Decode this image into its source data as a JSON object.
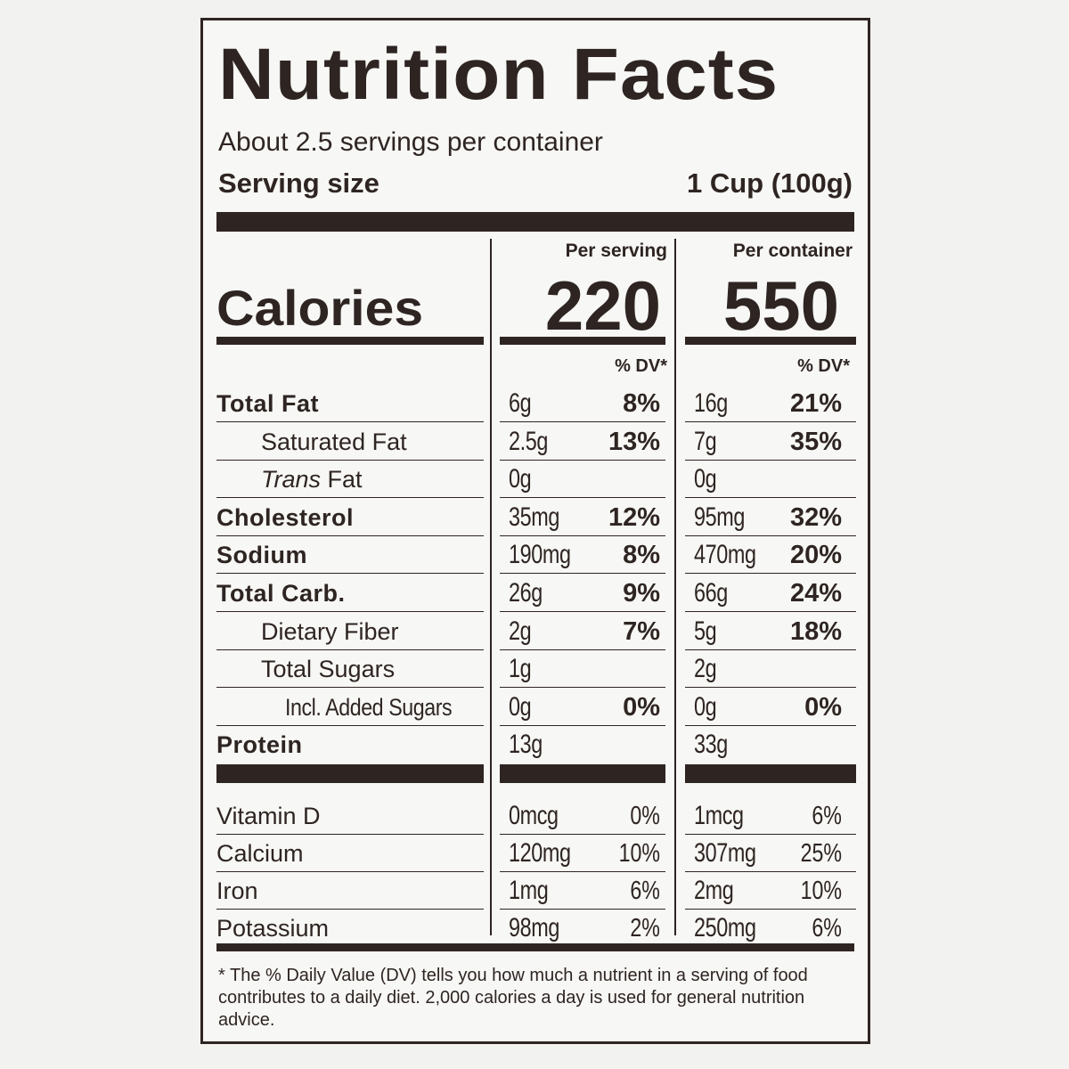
{
  "title": "Nutrition Facts",
  "servings_per_container": "About 2.5 servings per container",
  "serving_size_label": "Serving size",
  "serving_size_value": "1 Cup (100g)",
  "calories_label": "Calories",
  "columns": [
    {
      "header": "Per serving",
      "calories": "220",
      "dv_header": "% DV*"
    },
    {
      "header": "Per container",
      "calories": "550",
      "dv_header": "% DV*"
    }
  ],
  "nutrients": [
    {
      "name": "Total Fat",
      "style": "bold",
      "indent": 0,
      "serving": {
        "amount": "6g",
        "dv": "8%"
      },
      "container": {
        "amount": "16g",
        "dv": "21%"
      }
    },
    {
      "name": "Saturated Fat",
      "style": "normal",
      "indent": 1,
      "serving": {
        "amount": "2.5g",
        "dv": "13%"
      },
      "container": {
        "amount": "7g",
        "dv": "35%"
      }
    },
    {
      "name": "Trans",
      "name_suffix": " Fat",
      "style": "italic",
      "indent": 1,
      "serving": {
        "amount": "0g",
        "dv": ""
      },
      "container": {
        "amount": "0g",
        "dv": ""
      }
    },
    {
      "name": "Cholesterol",
      "style": "bold",
      "indent": 0,
      "serving": {
        "amount": "35mg",
        "dv": "12%"
      },
      "container": {
        "amount": "95mg",
        "dv": "32%"
      }
    },
    {
      "name": "Sodium",
      "style": "bold",
      "indent": 0,
      "serving": {
        "amount": "190mg",
        "dv": "8%"
      },
      "container": {
        "amount": "470mg",
        "dv": "20%"
      }
    },
    {
      "name": "Total Carb.",
      "style": "bold",
      "indent": 0,
      "serving": {
        "amount": "26g",
        "dv": "9%"
      },
      "container": {
        "amount": "66g",
        "dv": "24%"
      }
    },
    {
      "name": "Dietary Fiber",
      "style": "normal",
      "indent": 1,
      "serving": {
        "amount": "2g",
        "dv": "7%"
      },
      "container": {
        "amount": "5g",
        "dv": "18%"
      }
    },
    {
      "name": "Total Sugars",
      "style": "normal",
      "indent": 1,
      "serving": {
        "amount": "1g",
        "dv": ""
      },
      "container": {
        "amount": "2g",
        "dv": ""
      }
    },
    {
      "name": "Incl. Added Sugars",
      "style": "condensed",
      "indent": 2,
      "serving": {
        "amount": "0g",
        "dv": "0%"
      },
      "container": {
        "amount": "0g",
        "dv": "0%"
      }
    },
    {
      "name": "Protein",
      "style": "bold",
      "indent": 0,
      "serving": {
        "amount": "13g",
        "dv": ""
      },
      "container": {
        "amount": "33g",
        "dv": ""
      }
    }
  ],
  "vitamins": [
    {
      "name": "Vitamin D",
      "serving": {
        "amount": "0mcg",
        "dv": "0%"
      },
      "container": {
        "amount": "1mcg",
        "dv": "6%"
      }
    },
    {
      "name": "Calcium",
      "serving": {
        "amount": "120mg",
        "dv": "10%"
      },
      "container": {
        "amount": "307mg",
        "dv": "25%"
      }
    },
    {
      "name": "Iron",
      "serving": {
        "amount": "1mg",
        "dv": "6%"
      },
      "container": {
        "amount": "2mg",
        "dv": "10%"
      }
    },
    {
      "name": "Potassium",
      "serving": {
        "amount": "98mg",
        "dv": "2%"
      },
      "container": {
        "amount": "250mg",
        "dv": "6%"
      }
    }
  ],
  "footnote": "* The % Daily Value (DV) tells you how much a nutrient in a serving of food contributes to a daily diet. 2,000 calories a day is used for general nutrition advice.",
  "colors": {
    "ink": "#2e2522",
    "panel": "#f7f7f5",
    "background": "#f2f2f0"
  }
}
